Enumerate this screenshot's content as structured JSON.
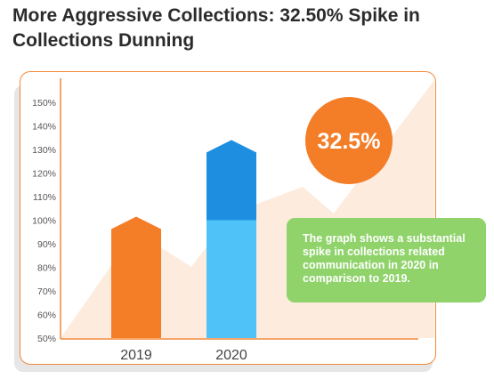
{
  "title": "More Aggressive Collections: 32.50% Spike in Collections Dunning",
  "chart_data": {
    "type": "bar",
    "categories": [
      "2019",
      "2020"
    ],
    "values": [
      100,
      132.5
    ],
    "ylim": [
      50,
      150
    ],
    "yticks": [
      "50%",
      "60%",
      "70%",
      "80%",
      "90%",
      "100%",
      "110%",
      "120%",
      "130%",
      "140%",
      "150%"
    ],
    "highlight_label": "32.5%",
    "annotation": "The graph shows a substantial spike in collections related communication in 2020 in comparison to 2019.",
    "colors": {
      "bar_2019": "#f47d28",
      "bar_2020_base": "#4fc3f7",
      "bar_2020_increase": "#1e8fe0",
      "badge": "#f47d28",
      "note": "#8fd36a",
      "background_area": "#fde8d8"
    }
  }
}
